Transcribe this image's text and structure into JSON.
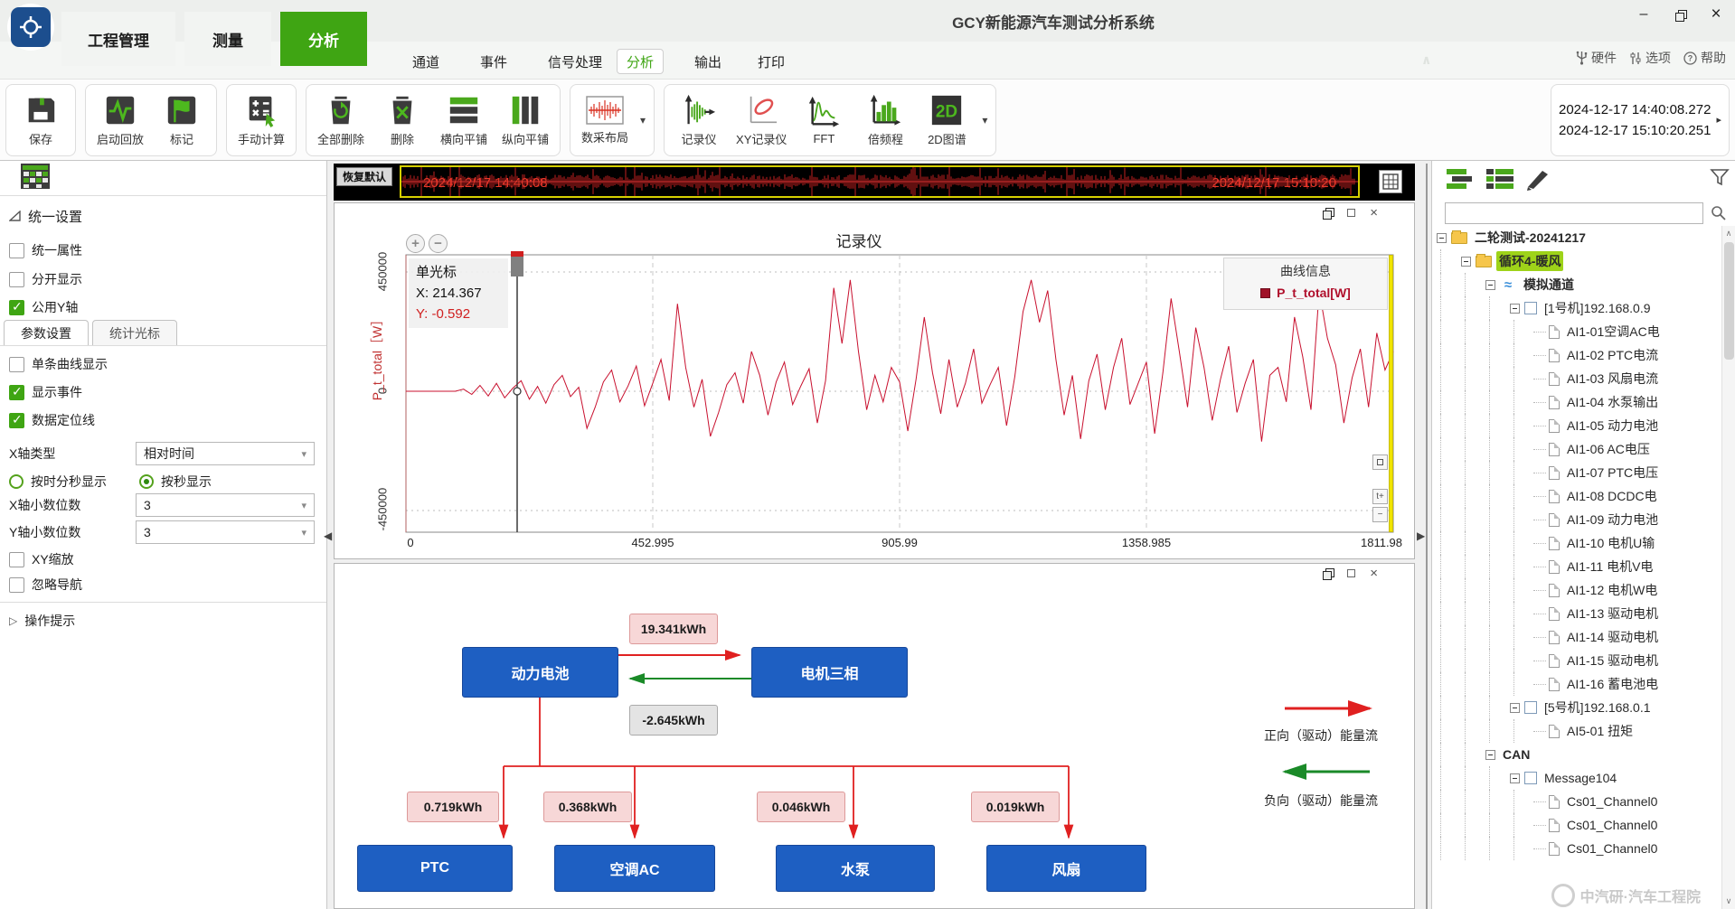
{
  "app": {
    "title": "GCY新能源汽车测试分析系统"
  },
  "glyphs": {
    "minimize": "–",
    "close": "×",
    "dropdown": "▾",
    "left_arrow": "◀",
    "right_arrow": "▶",
    "up_arrow": "∧",
    "down_arrow": "∨",
    "right_small": "▸",
    "hint_tri": "▷",
    "section_tri": "⊿",
    "wave": "≈"
  },
  "main_tabs": [
    {
      "label": "工程管理",
      "active": false
    },
    {
      "label": "测量",
      "active": false
    },
    {
      "label": "分析",
      "active": true
    }
  ],
  "menu_tabs": [
    {
      "label": "通道",
      "active": false
    },
    {
      "label": "事件",
      "active": false
    },
    {
      "label": "信号处理",
      "active": false
    },
    {
      "label": "分析",
      "active": true
    },
    {
      "label": "输出",
      "active": false
    },
    {
      "label": "打印",
      "active": false
    }
  ],
  "menu_right": [
    {
      "label": "硬件"
    },
    {
      "label": "选项"
    },
    {
      "label": "帮助"
    }
  ],
  "toolbar": {
    "save": "保存",
    "replay": "启动回放",
    "mark": "标记",
    "manual_calc": "手动计算",
    "delete_all": "全部删除",
    "delete": "删除",
    "tile_h": "横向平铺",
    "tile_v": "纵向平铺",
    "daq_layout": "数采布局",
    "recorder": "记录仪",
    "xy_recorder": "XY记录仪",
    "fft": "FFT",
    "octave": "倍频程",
    "spectrum_2d": "2D图谱",
    "time_start": "2024-12-17 14:40:08.272",
    "time_end": "2024-12-17 15:10:20.251"
  },
  "sidebar": {
    "section_title": "统一设置",
    "checkboxes_top": [
      {
        "label": "统一属性",
        "checked": false
      },
      {
        "label": "分开显示",
        "checked": false
      },
      {
        "label": "公用Y轴",
        "checked": true
      }
    ],
    "tabs": [
      {
        "label": "参数设置",
        "active": true
      },
      {
        "label": "统计光标",
        "active": false
      }
    ],
    "checkboxes_mid": [
      {
        "label": "单条曲线显示",
        "checked": false
      },
      {
        "label": "显示事件",
        "checked": true
      },
      {
        "label": "数据定位线",
        "checked": true
      }
    ],
    "xaxis_type_label": "X轴类型",
    "xaxis_type_value": "相对时间",
    "radios": [
      {
        "label": "按时分秒显示",
        "selected": false
      },
      {
        "label": "按秒显示",
        "selected": true
      }
    ],
    "x_decimals_label": "X轴小数位数",
    "x_decimals_value": "3",
    "y_decimals_label": "Y轴小数位数",
    "y_decimals_value": "3",
    "checkboxes_bottom": [
      {
        "label": "XY缩放",
        "checked": false
      },
      {
        "label": "忽略导航",
        "checked": false
      }
    ],
    "hint_label": "操作提示"
  },
  "overview": {
    "reset": "恢复默认",
    "start": "2024/12/17 14:40:08",
    "end": "2024/12/17 15:10:20"
  },
  "chart_data": {
    "type": "line",
    "title": "记录仪",
    "x_range": [
      0,
      1811.98
    ],
    "y_range": [
      -450000,
      450000
    ],
    "x_ticks": [
      "0",
      "452.995",
      "905.99",
      "1358.985",
      "1811.98"
    ],
    "y_ticks": [
      "450000",
      "0",
      "-450000"
    ],
    "ylabel": "P_t_total［W］",
    "legend_title": "曲线信息",
    "grid": true,
    "legend_position": "top-right",
    "cursor": {
      "label": "单光标",
      "x_text": "X: 214.367",
      "y_text": "Y: -0.592",
      "x_value": 214.367,
      "y_value": -0.592
    },
    "series": [
      {
        "name": "P_t_total[W]",
        "color": "#c8102e",
        "values": [
          0,
          0,
          0,
          0,
          0,
          0,
          0,
          8000,
          -12000,
          22000,
          -18000,
          30000,
          -25000,
          12000,
          40000,
          -30000,
          18000,
          -45000,
          25000,
          60000,
          -20000,
          15000,
          -140000,
          -60000,
          35000,
          80000,
          -40000,
          20000,
          95000,
          -55000,
          30000,
          120000,
          -35000,
          330000,
          90000,
          -60000,
          45000,
          -170000,
          -80000,
          25000,
          70000,
          -45000,
          150000,
          60000,
          -90000,
          35000,
          110000,
          -50000,
          20000,
          85000,
          -120000,
          40000,
          390000,
          180000,
          420000,
          150000,
          -70000,
          60000,
          -40000,
          90000,
          35000,
          -150000,
          45000,
          280000,
          70000,
          -85000,
          120000,
          -60000,
          30000,
          160000,
          -45000,
          25000,
          90000,
          -130000,
          55000,
          300000,
          420000,
          260000,
          380000,
          120000,
          -90000,
          60000,
          -180000,
          40000,
          140000,
          -70000,
          90000,
          200000,
          -50000,
          30000,
          110000,
          -160000,
          70000,
          350000,
          150000,
          -60000,
          240000,
          90000,
          -110000,
          45000,
          170000,
          -80000,
          30000,
          120000,
          -190000,
          60000,
          90000,
          -40000,
          280000,
          130000,
          -70000,
          380000,
          200000,
          100000,
          -120000,
          50000,
          160000,
          -60000,
          220000,
          80000,
          150000
        ]
      }
    ]
  },
  "diagram": {
    "nodes": {
      "battery": "动力电池",
      "motor": "电机三相",
      "ptc": "PTC",
      "ac": "空调AC",
      "pump": "水泵",
      "fan": "风扇"
    },
    "flows": {
      "forward": "19.341kWh",
      "reverse": "-2.645kWh",
      "ptc": "0.719kWh",
      "ac": "0.368kWh",
      "pump": "0.046kWh",
      "fan": "0.019kWh"
    },
    "legend": {
      "forward": "正向（驱动）能量流",
      "reverse": "负向（驱动）能量流"
    },
    "colors": {
      "forward": "#e02020",
      "reverse": "#1a8a28",
      "node": "#1e5fc2"
    }
  },
  "tree": {
    "items": [
      {
        "label": "二轮测试-20241217",
        "depth": 0,
        "icon": "folder",
        "expander": true,
        "bold": true
      },
      {
        "label": "循环4-暖风",
        "depth": 1,
        "icon": "folder",
        "expander": true,
        "bold": true,
        "highlight": true
      },
      {
        "label": "模拟通道",
        "depth": 2,
        "icon": "wave",
        "expander": true,
        "bold": true
      },
      {
        "label": "[1号机]192.168.0.9",
        "depth": 3,
        "icon": "checkbox",
        "expander": true
      },
      {
        "label": "AI1-01空调AC电",
        "depth": 4,
        "icon": "doc"
      },
      {
        "label": "AI1-02 PTC电流",
        "depth": 4,
        "icon": "doc"
      },
      {
        "label": "AI1-03 风扇电流",
        "depth": 4,
        "icon": "doc"
      },
      {
        "label": "AI1-04 水泵输出",
        "depth": 4,
        "icon": "doc"
      },
      {
        "label": "AI1-05 动力电池",
        "depth": 4,
        "icon": "doc"
      },
      {
        "label": "AI1-06 AC电压",
        "depth": 4,
        "icon": "doc"
      },
      {
        "label": "AI1-07 PTC电压",
        "depth": 4,
        "icon": "doc"
      },
      {
        "label": "AI1-08 DCDC电",
        "depth": 4,
        "icon": "doc"
      },
      {
        "label": "AI1-09 动力电池",
        "depth": 4,
        "icon": "doc"
      },
      {
        "label": "AI1-10 电机U输",
        "depth": 4,
        "icon": "doc"
      },
      {
        "label": "AI1-11 电机V电",
        "depth": 4,
        "icon": "doc"
      },
      {
        "label": "AI1-12 电机W电",
        "depth": 4,
        "icon": "doc"
      },
      {
        "label": "AI1-13 驱动电机",
        "depth": 4,
        "icon": "doc"
      },
      {
        "label": "AI1-14 驱动电机",
        "depth": 4,
        "icon": "doc"
      },
      {
        "label": "AI1-15 驱动电机",
        "depth": 4,
        "icon": "doc"
      },
      {
        "label": "AI1-16 蓄电池电",
        "depth": 4,
        "icon": "doc"
      },
      {
        "label": "[5号机]192.168.0.1",
        "depth": 3,
        "icon": "checkbox",
        "expander": true
      },
      {
        "label": "AI5-01 扭矩",
        "depth": 4,
        "icon": "doc"
      },
      {
        "label": "CAN",
        "depth": 2,
        "expander": true,
        "bold": true
      },
      {
        "label": "Message104",
        "depth": 3,
        "icon": "checkbox",
        "expander": true
      },
      {
        "label": "Cs01_Channel0",
        "depth": 4,
        "icon": "doc"
      },
      {
        "label": "Cs01_Channel0",
        "depth": 4,
        "icon": "doc"
      },
      {
        "label": "Cs01_Channel0",
        "depth": 4,
        "icon": "doc"
      }
    ]
  },
  "watermark": "中汽研·汽车工程院"
}
